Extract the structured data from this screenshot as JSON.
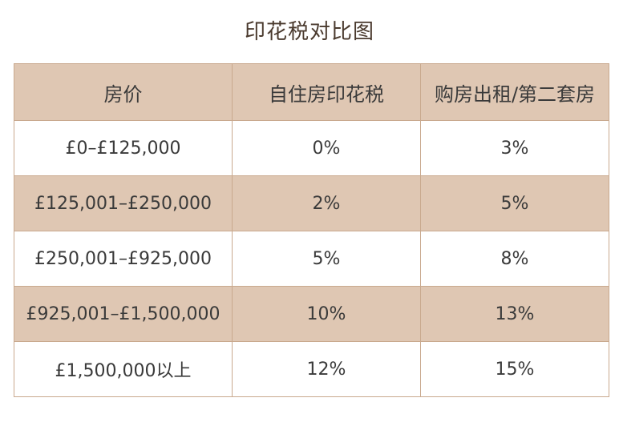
{
  "title": "印花税对比图",
  "colors": {
    "header_bg": "#dfc7b3",
    "shaded_row_bg": "#dfc7b3",
    "border": "#c9a98e",
    "title_text": "#4a3a2e"
  },
  "table": {
    "headers": [
      "房价",
      "自住房印花税",
      "购房出租/第二套房"
    ],
    "rows": [
      [
        "£0–£125,000",
        "0%",
        "3%"
      ],
      [
        "£125,001–£250,000",
        "2%",
        "5%"
      ],
      [
        "£250,001–£925,000",
        "5%",
        "8%"
      ],
      [
        "£925,001–£1,500,000",
        "10%",
        "13%"
      ],
      [
        "£1,500,000以上",
        "12%",
        "15%"
      ]
    ]
  }
}
